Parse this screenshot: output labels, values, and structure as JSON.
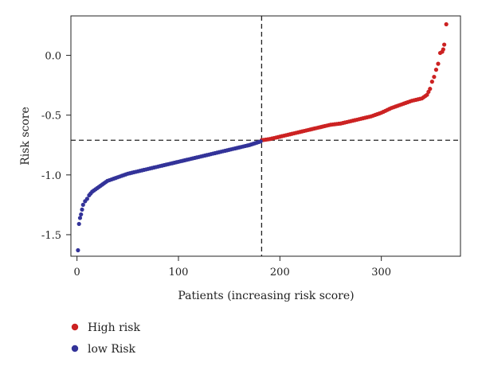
{
  "chart_data": {
    "type": "scatter",
    "xlabel": "Patients (increasing risk score)",
    "ylabel": "Risk score",
    "xlim": [
      -6,
      378
    ],
    "ylim": [
      -1.68,
      0.33
    ],
    "xticks": [
      0,
      100,
      200,
      300
    ],
    "xtick_labels": [
      "0",
      "100",
      "200",
      "300"
    ],
    "yticks": [
      0.0,
      -0.5,
      -1.0,
      -1.5
    ],
    "ytick_labels": [
      "0.0",
      "-0.5",
      "-1.0",
      "-1.5"
    ],
    "cutoff": {
      "x": 182,
      "y": -0.71
    },
    "grid": false,
    "legend_position": "bottom-left",
    "series": [
      {
        "name": "High risk",
        "color": "#cc2222",
        "x": [
          182,
          190,
          200,
          210,
          220,
          230,
          240,
          250,
          260,
          270,
          280,
          290,
          300,
          310,
          320,
          330,
          340,
          345,
          348,
          350,
          352,
          354,
          356,
          358,
          360,
          361,
          362,
          364
        ],
        "y": [
          -0.71,
          -0.7,
          -0.68,
          -0.66,
          -0.64,
          -0.62,
          -0.6,
          -0.58,
          -0.57,
          -0.55,
          -0.53,
          -0.51,
          -0.48,
          -0.44,
          -0.41,
          -0.38,
          -0.36,
          -0.33,
          -0.28,
          -0.22,
          -0.18,
          -0.12,
          -0.07,
          0.02,
          0.03,
          0.05,
          0.09,
          0.26
        ]
      },
      {
        "name": "low Risk",
        "color": "#333399",
        "x": [
          1,
          2,
          3,
          4,
          5,
          6,
          8,
          10,
          12,
          15,
          20,
          25,
          30,
          40,
          50,
          60,
          70,
          80,
          90,
          100,
          110,
          120,
          130,
          140,
          150,
          160,
          170,
          181
        ],
        "y": [
          -1.63,
          -1.41,
          -1.36,
          -1.33,
          -1.29,
          -1.25,
          -1.22,
          -1.2,
          -1.17,
          -1.14,
          -1.11,
          -1.08,
          -1.05,
          -1.02,
          -0.99,
          -0.97,
          -0.95,
          -0.93,
          -0.91,
          -0.89,
          -0.87,
          -0.85,
          -0.83,
          -0.81,
          -0.79,
          -0.77,
          -0.75,
          -0.72
        ]
      }
    ]
  }
}
